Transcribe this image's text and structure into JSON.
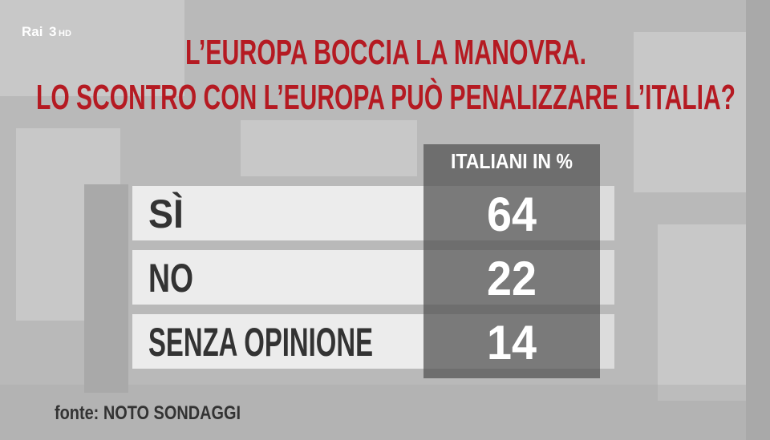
{
  "logo": {
    "brand": "Rai",
    "channel": "3",
    "quality": "HD"
  },
  "title": {
    "line1": "L’EUROPA BOCCIA LA MANOVRA.",
    "line2": "LO SCONTRO CON L’EUROPA PUÒ PENALIZZARE L’ITALIA?"
  },
  "table": {
    "header": "ITALIANI IN %",
    "rows": [
      [
        "SÌ",
        64
      ],
      [
        "NO",
        22
      ],
      [
        "SENZA OPINIONE",
        14
      ]
    ]
  },
  "source": "fonte: NOTO SONDAGGI"
}
